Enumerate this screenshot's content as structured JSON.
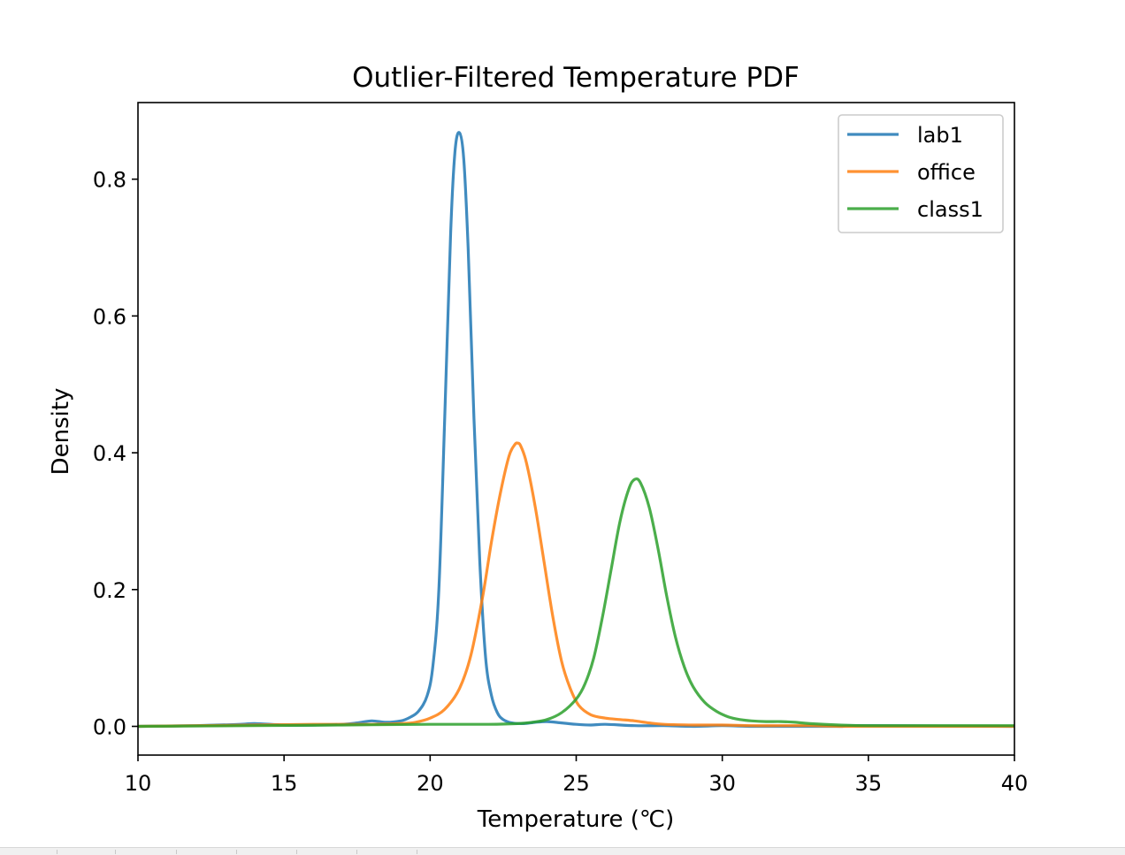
{
  "chart_data": {
    "type": "line",
    "title": "Outlier-Filtered Temperature PDF",
    "xlabel": "Temperature (℃)",
    "ylabel": "Density",
    "xlim": [
      10,
      40
    ],
    "ylim": [
      -0.042,
      0.912
    ],
    "xticks": [
      10,
      15,
      20,
      25,
      30,
      35,
      40
    ],
    "xtick_labels": [
      "10",
      "15",
      "20",
      "25",
      "30",
      "35",
      "40"
    ],
    "yticks": [
      0.0,
      0.2,
      0.4,
      0.6,
      0.8
    ],
    "ytick_labels": [
      "0.0",
      "0.2",
      "0.4",
      "0.6",
      "0.8"
    ],
    "grid": false,
    "legend_position": "top-right",
    "series": [
      {
        "name": "lab1",
        "color": "#1f77b4",
        "x": [
          10,
          12,
          13.5,
          14,
          15,
          16,
          17,
          17.5,
          18,
          18.5,
          19,
          19.3,
          19.6,
          19.9,
          20.1,
          20.3,
          20.5,
          20.7,
          20.85,
          21.0,
          21.15,
          21.3,
          21.5,
          21.7,
          21.9,
          22.1,
          22.3,
          22.5,
          22.8,
          23.2,
          23.6,
          24.0,
          24.5,
          25.0,
          25.5,
          26.0,
          27,
          28,
          29,
          30,
          31,
          32,
          33,
          34,
          35,
          40
        ],
        "y": [
          0.0,
          0.001,
          0.003,
          0.004,
          0.002,
          0.002,
          0.003,
          0.005,
          0.008,
          0.006,
          0.008,
          0.013,
          0.022,
          0.045,
          0.09,
          0.2,
          0.45,
          0.72,
          0.84,
          0.868,
          0.83,
          0.7,
          0.45,
          0.24,
          0.1,
          0.045,
          0.02,
          0.01,
          0.005,
          0.004,
          0.006,
          0.007,
          0.005,
          0.003,
          0.002,
          0.003,
          0.001,
          0.001,
          0.0,
          0.001,
          0.0,
          0.0,
          0.0,
          0.0,
          0.001,
          0.0
        ]
      },
      {
        "name": "office",
        "color": "#ff7f0e",
        "x": [
          10,
          12,
          14,
          16,
          17,
          18,
          19,
          19.5,
          20,
          20.5,
          21,
          21.4,
          21.8,
          22.1,
          22.4,
          22.7,
          22.9,
          23.0,
          23.1,
          23.3,
          23.6,
          23.9,
          24.2,
          24.5,
          24.8,
          25.1,
          25.5,
          26,
          26.5,
          27,
          27.5,
          28,
          29,
          30,
          31,
          32,
          33,
          34,
          35,
          40
        ],
        "y": [
          0.0,
          0.001,
          0.002,
          0.003,
          0.003,
          0.003,
          0.004,
          0.006,
          0.012,
          0.025,
          0.055,
          0.105,
          0.19,
          0.27,
          0.34,
          0.395,
          0.412,
          0.414,
          0.41,
          0.385,
          0.32,
          0.24,
          0.16,
          0.095,
          0.055,
          0.03,
          0.017,
          0.012,
          0.01,
          0.008,
          0.005,
          0.003,
          0.002,
          0.002,
          0.001,
          0.001,
          0.001,
          0.0,
          0.0,
          0.0
        ]
      },
      {
        "name": "class1",
        "color": "#2ca02c",
        "x": [
          10,
          14,
          17,
          20,
          22,
          23,
          23.5,
          24,
          24.5,
          25,
          25.3,
          25.6,
          25.9,
          26.2,
          26.5,
          26.8,
          27.0,
          27.2,
          27.5,
          27.8,
          28.1,
          28.4,
          28.7,
          29.0,
          29.4,
          29.8,
          30.2,
          30.6,
          31,
          31.5,
          32,
          32.5,
          33,
          34,
          35,
          37,
          40
        ],
        "y": [
          0.0,
          0.001,
          0.002,
          0.003,
          0.003,
          0.004,
          0.006,
          0.01,
          0.02,
          0.04,
          0.062,
          0.1,
          0.16,
          0.23,
          0.3,
          0.347,
          0.361,
          0.356,
          0.32,
          0.26,
          0.19,
          0.13,
          0.087,
          0.058,
          0.035,
          0.022,
          0.014,
          0.01,
          0.008,
          0.007,
          0.007,
          0.006,
          0.004,
          0.002,
          0.001,
          0.001,
          0.001
        ]
      }
    ]
  },
  "statusbar": {
    "segments": 7
  }
}
